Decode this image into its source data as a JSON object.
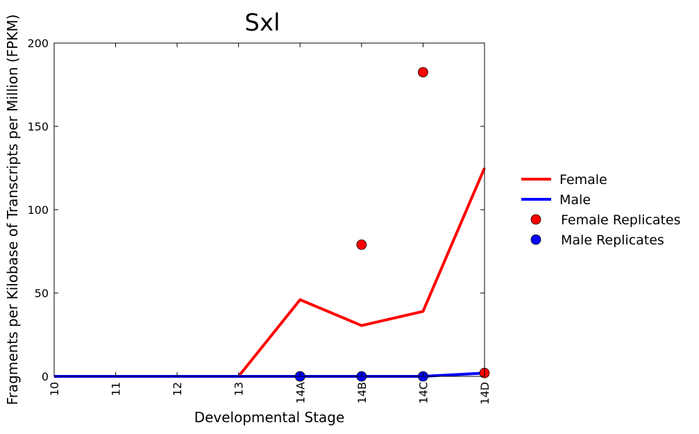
{
  "chart_data": {
    "type": "line",
    "title": "Sxl",
    "xlabel": "Developmental Stage",
    "ylabel": "Fragments per Kilobase of Transcripts per Million (FPKM)",
    "categories": [
      "10",
      "11",
      "12",
      "13",
      "14A",
      "14B",
      "14C",
      "14D"
    ],
    "ylim": [
      0,
      200
    ],
    "yticks": [
      "0",
      "50",
      "100",
      "150",
      "200"
    ],
    "grid": false,
    "legend_position": "right",
    "series": [
      {
        "name": "Female",
        "kind": "line",
        "color": "#ff0000",
        "values": [
          0,
          0,
          0,
          0,
          46,
          30.5,
          39,
          125
        ]
      },
      {
        "name": "Male",
        "kind": "line",
        "color": "#0000ff",
        "values": [
          0,
          0,
          0,
          0,
          0,
          0,
          0,
          2
        ]
      },
      {
        "name": "Female Replicates",
        "kind": "scatter",
        "color": "#ff0000",
        "points": [
          {
            "x": "14A",
            "y": 0
          },
          {
            "x": "14B",
            "y": 79
          },
          {
            "x": "14C",
            "y": 182.5
          },
          {
            "x": "14D",
            "y": 2
          }
        ]
      },
      {
        "name": "Male Replicates",
        "kind": "scatter",
        "color": "#0000ff",
        "points": [
          {
            "x": "14A",
            "y": 0
          },
          {
            "x": "14B",
            "y": 0
          },
          {
            "x": "14C",
            "y": 0
          }
        ]
      }
    ]
  }
}
